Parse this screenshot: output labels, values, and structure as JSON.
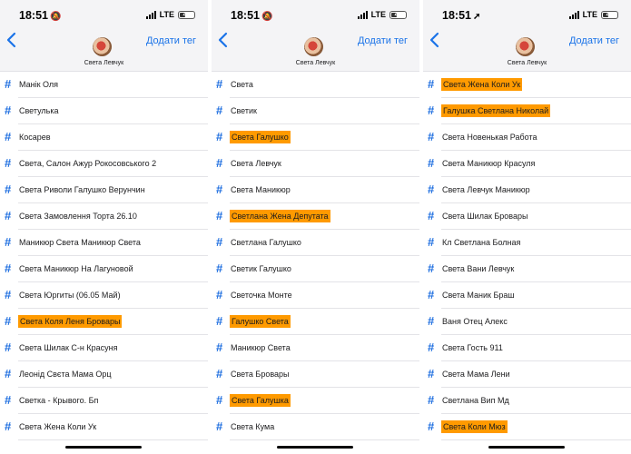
{
  "colors": {
    "accent": "#1f6fe0",
    "highlight": "#ff9a00"
  },
  "panels": [
    {
      "status": {
        "time": "18:51",
        "time_glyph": "🔕",
        "network": "LTE",
        "battery": "40"
      },
      "header": {
        "contact_name": "Света Левчук",
        "add_tag_label": "Додати тег"
      },
      "tags": [
        {
          "label": "Манік Оля",
          "highlighted": false
        },
        {
          "label": "Светулька",
          "highlighted": false
        },
        {
          "label": "Косарев",
          "highlighted": false
        },
        {
          "label": "Света, Салон Ажур Рокосовського 2",
          "highlighted": false
        },
        {
          "label": "Света Риволи Галушко Верунчин",
          "highlighted": false
        },
        {
          "label": "Света Замовлення Торта 26.10",
          "highlighted": false
        },
        {
          "label": "Маникюр Света Маникюр Света",
          "highlighted": false
        },
        {
          "label": "Света Маникюр На Лагуновой",
          "highlighted": false
        },
        {
          "label": "Света Юргиты (06.05 Май)",
          "highlighted": false
        },
        {
          "label": "Света Коля Леня Бровары",
          "highlighted": true
        },
        {
          "label": "Света Шилак С-н Красуня",
          "highlighted": false
        },
        {
          "label": "Леонід Свєта Мама Орц",
          "highlighted": false
        },
        {
          "label": "Светка - Крывого. Бп",
          "highlighted": false
        },
        {
          "label": "Света Жена Коли Ук",
          "highlighted": false
        }
      ]
    },
    {
      "status": {
        "time": "18:51",
        "time_glyph": "🔕",
        "network": "LTE",
        "battery": "40"
      },
      "header": {
        "contact_name": "Света Левчук",
        "add_tag_label": "Додати тег"
      },
      "tags": [
        {
          "label": "Света",
          "highlighted": false
        },
        {
          "label": "Светик",
          "highlighted": false
        },
        {
          "label": "Света Галушко",
          "highlighted": true
        },
        {
          "label": "Света Левчук",
          "highlighted": false
        },
        {
          "label": "Света Маникюр",
          "highlighted": false
        },
        {
          "label": "Светлана Жена Депутата",
          "highlighted": true
        },
        {
          "label": "Светлана Галушко",
          "highlighted": false
        },
        {
          "label": "Светик Галушко",
          "highlighted": false
        },
        {
          "label": "Светочка Монте",
          "highlighted": false
        },
        {
          "label": "Галушко Света",
          "highlighted": true
        },
        {
          "label": "Маникюр Света",
          "highlighted": false
        },
        {
          "label": "Света Бровары",
          "highlighted": false
        },
        {
          "label": "Света Галушка",
          "highlighted": true
        },
        {
          "label": "Света Кума",
          "highlighted": false
        }
      ]
    },
    {
      "status": {
        "time": "18:51",
        "time_glyph": "➚",
        "network": "LTE",
        "battery": "40"
      },
      "header": {
        "contact_name": "Света Левчук",
        "add_tag_label": "Додати тег"
      },
      "tags": [
        {
          "label": "Света Жена Коли Ук",
          "highlighted": true
        },
        {
          "label": "Галушка Светлана Николай",
          "highlighted": true
        },
        {
          "label": "Света Новенькая Работа",
          "highlighted": false
        },
        {
          "label": "Света Маникюр Красуля",
          "highlighted": false
        },
        {
          "label": "Света Левчук Маникюр",
          "highlighted": false
        },
        {
          "label": "Света Шилак Бровары",
          "highlighted": false
        },
        {
          "label": "Кл Светлана Болная",
          "highlighted": false
        },
        {
          "label": "Света Вани Левчук",
          "highlighted": false
        },
        {
          "label": "Света Маник Браш",
          "highlighted": false
        },
        {
          "label": "Ваня Отец Алекс",
          "highlighted": false
        },
        {
          "label": "Света Гость 911",
          "highlighted": false
        },
        {
          "label": "Света Мама Лени",
          "highlighted": false
        },
        {
          "label": "Светлана Вип Мд",
          "highlighted": false
        },
        {
          "label": "Света Коли Мюз",
          "highlighted": true
        }
      ]
    }
  ]
}
